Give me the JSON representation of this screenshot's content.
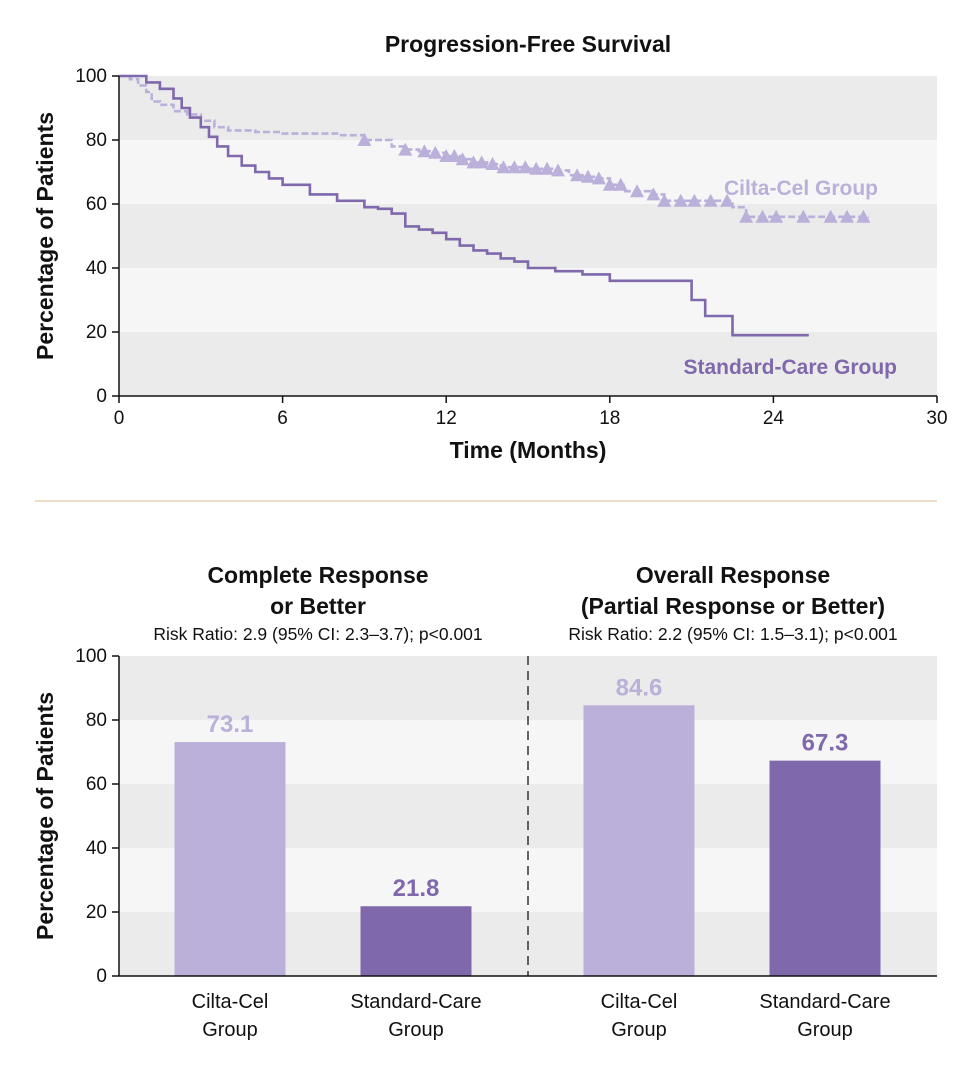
{
  "colors": {
    "cilta": "#bbb0d9",
    "standard": "#7f69ac",
    "band_dark": "#ebebeb",
    "band_light": "#f6f6f6",
    "divider": "#e6d4b2"
  },
  "chart_data": [
    {
      "type": "line",
      "title": "Progression-Free Survival",
      "xlabel": "Time (Months)",
      "ylabel": "Percentage of Patients",
      "xlim": [
        0,
        30
      ],
      "ylim": [
        0,
        100
      ],
      "xticks": [
        "0",
        "6",
        "12",
        "18",
        "24",
        "30"
      ],
      "yticks": [
        "0",
        "20",
        "40",
        "60",
        "80",
        "100"
      ],
      "series": [
        {
          "name": "Cilta-Cel Group",
          "x": [
            0,
            0.4,
            0.7,
            1.0,
            1.2,
            1.5,
            2.0,
            2.5,
            3.0,
            3.5,
            4.0,
            5.0,
            6.0,
            8.0,
            9.0,
            10.0,
            10.5,
            11.0,
            11.5,
            12.0,
            12.5,
            13.0,
            13.5,
            14.0,
            15.0,
            16.0,
            16.5,
            17.0,
            17.5,
            18.0,
            18.5,
            19.0,
            19.5,
            20.0,
            21.0,
            22.0,
            22.5,
            23.0,
            24.0,
            25.0,
            26.0,
            27.0,
            27.5
          ],
          "y": [
            100,
            99,
            97,
            95,
            92,
            91,
            89,
            88,
            86,
            84,
            83,
            82.5,
            82,
            81.5,
            80,
            78,
            77,
            76.5,
            76,
            75,
            74,
            73,
            72.5,
            71.5,
            71,
            70.5,
            69,
            68.5,
            68,
            66,
            64,
            64,
            63,
            61,
            61,
            61,
            59,
            56,
            56,
            56,
            56,
            56,
            56
          ],
          "censor_marks_x": [
            9.0,
            10.5,
            11.2,
            11.6,
            12.0,
            12.3,
            12.6,
            13.0,
            13.3,
            13.7,
            14.1,
            14.5,
            14.9,
            15.3,
            15.7,
            16.1,
            16.8,
            17.2,
            17.6,
            18.0,
            18.4,
            19.0,
            19.6,
            20.0,
            20.6,
            21.1,
            21.7,
            22.3,
            23.0,
            23.6,
            24.1,
            25.1,
            26.1,
            26.7,
            27.3
          ]
        },
        {
          "name": "Standard-Care Group",
          "x": [
            0,
            1.0,
            1.5,
            2.0,
            2.3,
            2.6,
            3.0,
            3.3,
            3.6,
            4.0,
            4.5,
            5.0,
            5.5,
            6.0,
            7.0,
            8.0,
            9.0,
            9.5,
            10.0,
            10.5,
            11.0,
            11.5,
            12.0,
            12.5,
            13.0,
            13.5,
            14.0,
            14.5,
            15.0,
            16.0,
            17.0,
            18.0,
            19.0,
            20.0,
            20.5,
            21.0,
            21.5,
            22.0,
            22.5,
            23.0,
            24.0,
            25.0,
            25.3
          ],
          "y": [
            100,
            98,
            96,
            93,
            90,
            87,
            84,
            81,
            78,
            75,
            72,
            70,
            68,
            66,
            63,
            61,
            59,
            58.5,
            57,
            53,
            52,
            51,
            49,
            47,
            45.5,
            44.5,
            43,
            42,
            40,
            39,
            38,
            36,
            36,
            36,
            36,
            30,
            25,
            25,
            19,
            19,
            19,
            19,
            19
          ]
        }
      ],
      "series_labels": {
        "cilta": "Cilta-Cel Group",
        "standard": "Standard-Care Group"
      }
    },
    {
      "type": "bar",
      "title_line1": "Complete Response",
      "title_line2": "or Better",
      "subtitle": "Risk Ratio: 2.9 (95% CI: 2.3–3.7); p<0.001",
      "ylabel": "Percentage of Patients",
      "ylim": [
        0,
        100
      ],
      "yticks": [
        "0",
        "20",
        "40",
        "60",
        "80",
        "100"
      ],
      "categories": [
        {
          "line1": "Cilta-Cel",
          "line2": "Group"
        },
        {
          "line1": "Standard-Care",
          "line2": "Group"
        }
      ],
      "values": [
        73.1,
        21.8
      ],
      "value_labels": [
        "73.1",
        "21.8"
      ]
    },
    {
      "type": "bar",
      "title_line1": "Overall Response",
      "title_line2": "(Partial Response or Better)",
      "subtitle": "Risk Ratio: 2.2 (95% CI: 1.5–3.1); p<0.001",
      "ylim": [
        0,
        100
      ],
      "categories": [
        {
          "line1": "Cilta-Cel",
          "line2": "Group"
        },
        {
          "line1": "Standard-Care",
          "line2": "Group"
        }
      ],
      "values": [
        84.6,
        67.3
      ],
      "value_labels": [
        "84.6",
        "67.3"
      ]
    }
  ]
}
